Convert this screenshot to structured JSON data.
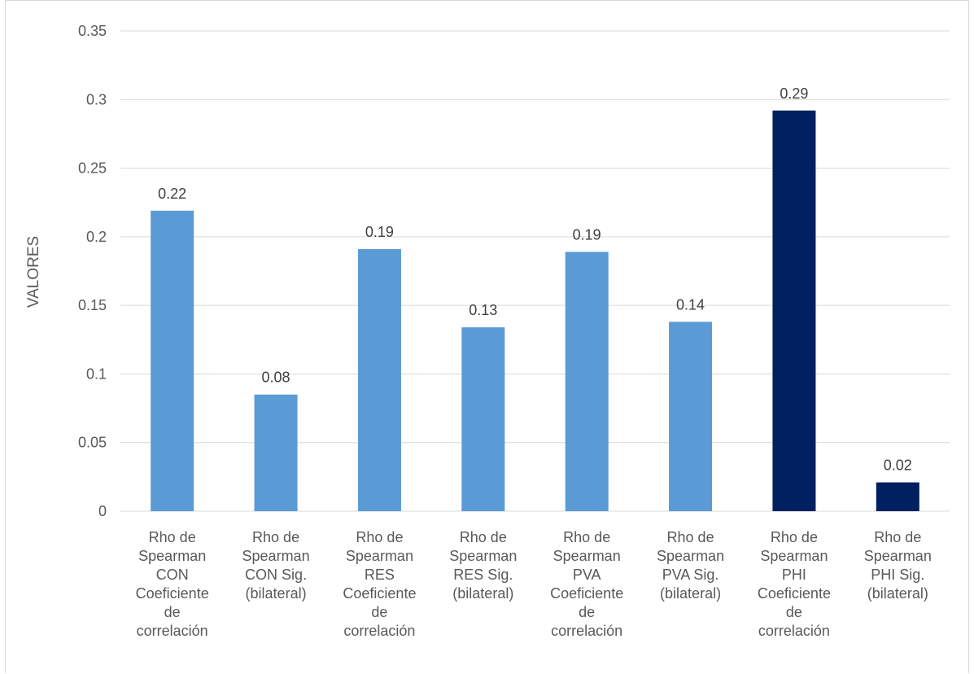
{
  "chart_data": {
    "type": "bar",
    "title": "",
    "xlabel": "",
    "ylabel": "VALORES",
    "ylim": [
      0,
      0.35
    ],
    "yticks": [
      "0",
      "0.05",
      "0.1",
      "0.15",
      "0.2",
      "0.25",
      "0.3",
      "0.35"
    ],
    "grid": true,
    "legend": "none",
    "categories": [
      [
        "Rho de",
        "Spearman",
        "CON",
        "Coeficiente",
        "de",
        "correlación"
      ],
      [
        "Rho de",
        "Spearman",
        "CON Sig.",
        "(bilateral)"
      ],
      [
        "Rho de",
        "Spearman",
        "RES",
        "Coeficiente",
        "de",
        "correlación"
      ],
      [
        "Rho de",
        "Spearman",
        "RES Sig.",
        "(bilateral)"
      ],
      [
        "Rho de",
        "Spearman",
        "PVA",
        "Coeficiente",
        "de",
        "correlación"
      ],
      [
        "Rho de",
        "Spearman",
        "PVA Sig.",
        "(bilateral)"
      ],
      [
        "Rho de",
        "Spearman",
        "PHI",
        "Coeficiente",
        "de",
        "correlación"
      ],
      [
        "Rho de",
        "Spearman",
        "PHI Sig.",
        "(bilateral)"
      ]
    ],
    "values": [
      0.219,
      0.085,
      0.191,
      0.134,
      0.189,
      0.138,
      0.292,
      0.021
    ],
    "data_labels": [
      "0.22",
      "0.08",
      "0.19",
      "0.13",
      "0.19",
      "0.14",
      "0.29",
      "0.02"
    ],
    "bar_colors": [
      "#5b9bd5",
      "#5b9bd5",
      "#5b9bd5",
      "#5b9bd5",
      "#5b9bd5",
      "#5b9bd5",
      "#002060",
      "#002060"
    ],
    "colors": {
      "light_blue": "#5b9bd5",
      "dark_navy": "#002060",
      "gridline": "#d9d9d9",
      "text": "#595959"
    }
  }
}
